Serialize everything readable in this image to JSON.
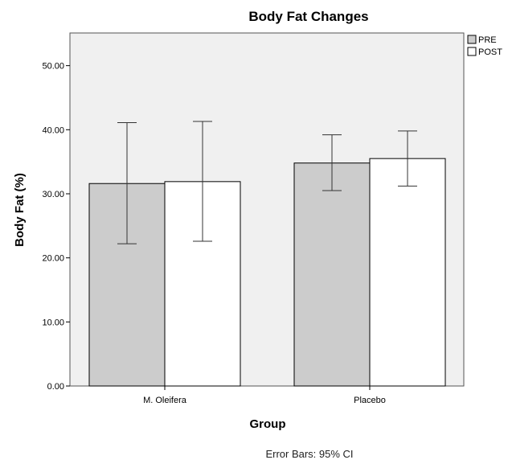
{
  "chart_data": {
    "type": "bar",
    "title": "Body Fat Changes",
    "xlabel": "Group",
    "ylabel": "Body Fat (%)",
    "categories": [
      "M. Oleifera",
      "Placebo"
    ],
    "series": [
      {
        "name": "PRE",
        "values": [
          31.6,
          34.8
        ],
        "ci_low": [
          22.2,
          30.5
        ],
        "ci_high": [
          41.1,
          39.2
        ],
        "color": "#cccccc"
      },
      {
        "name": "POST",
        "values": [
          31.9,
          35.5
        ],
        "ci_low": [
          22.6,
          31.2
        ],
        "ci_high": [
          41.3,
          39.8
        ],
        "color": "#ffffff"
      }
    ],
    "ylim": [
      0,
      55.1
    ],
    "yticks": [
      0,
      10,
      20,
      30,
      40,
      50
    ],
    "ytick_labels": [
      "0.00",
      "10.00",
      "20.00",
      "30.00",
      "40.00",
      "50.00"
    ],
    "grid": false,
    "legend_position": "top-right",
    "plot_background": "#f0f0f0",
    "footnote": "Error Bars: 95% CI"
  }
}
